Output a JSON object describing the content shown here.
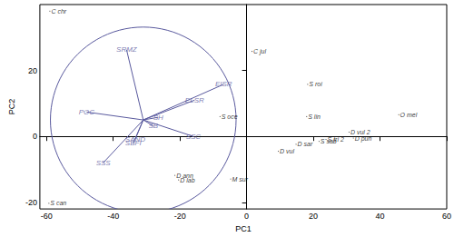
{
  "chart_data": {
    "type": "scatter",
    "x_label": "PC1",
    "y_label": "PC2",
    "xlim": [
      -62,
      60
    ],
    "xticks": [
      -60,
      -40,
      -20,
      0,
      20,
      40,
      60
    ],
    "ylim": [
      -22,
      40
    ],
    "yticks": [
      -20,
      0,
      20
    ],
    "grid": false,
    "color": "#000000",
    "points": [
      {
        "name": "C chr",
        "x": -59,
        "y": 38
      },
      {
        "name": "C jul",
        "x": 1.6,
        "y": 25.8
      },
      {
        "name": "S oce",
        "x": -8,
        "y": 6
      },
      {
        "name": "S roi",
        "x": 18.3,
        "y": 15.8
      },
      {
        "name": "S lin",
        "x": 18,
        "y": 6
      },
      {
        "name": "O mel",
        "x": 45.6,
        "y": 6.6
      },
      {
        "name": "D vul 2",
        "x": 30.7,
        "y": 1.3
      },
      {
        "name": "S sab",
        "x": 21.7,
        "y": -1.5
      },
      {
        "name": "D pun",
        "x": 32,
        "y": -0.5
      },
      {
        "name": "S tri 2",
        "x": 23.8,
        "y": -0.9
      },
      {
        "name": "D sar",
        "x": 14.8,
        "y": -2.4
      },
      {
        "name": "D vul",
        "x": 9.5,
        "y": -4.5
      },
      {
        "name": "D ann",
        "x": -21.5,
        "y": -11.8
      },
      {
        "name": "D lab",
        "x": -20.4,
        "y": -13.2
      },
      {
        "name": "M sur",
        "x": -4.8,
        "y": -12.9
      },
      {
        "name": "S can",
        "x": -59.3,
        "y": -20.3
      }
    ],
    "loadings_color": "#5a5a9e",
    "circle": {
      "center": [
        -31,
        5
      ],
      "radius": 28
    },
    "loadings": [
      {
        "name": "SRMZ",
        "x": -36,
        "y": 26.3
      },
      {
        "name": "POC",
        "x": -48,
        "y": 7.4
      },
      {
        "name": "EISR",
        "x": -6.9,
        "y": 15.8
      },
      {
        "name": "ELSR",
        "x": -15.6,
        "y": 11
      },
      {
        "name": "SH",
        "x": -26.5,
        "y": 5.8
      },
      {
        "name": "SB",
        "x": -28,
        "y": 3.2
      },
      {
        "name": "SSC",
        "x": -16,
        "y": 0
      },
      {
        "name": "SAND",
        "x": -33.4,
        "y": -0.8
      },
      {
        "name": "SBFI",
        "x": -34,
        "y": -2.1
      },
      {
        "name": "SSS",
        "x": -43,
        "y": -8
      }
    ]
  }
}
